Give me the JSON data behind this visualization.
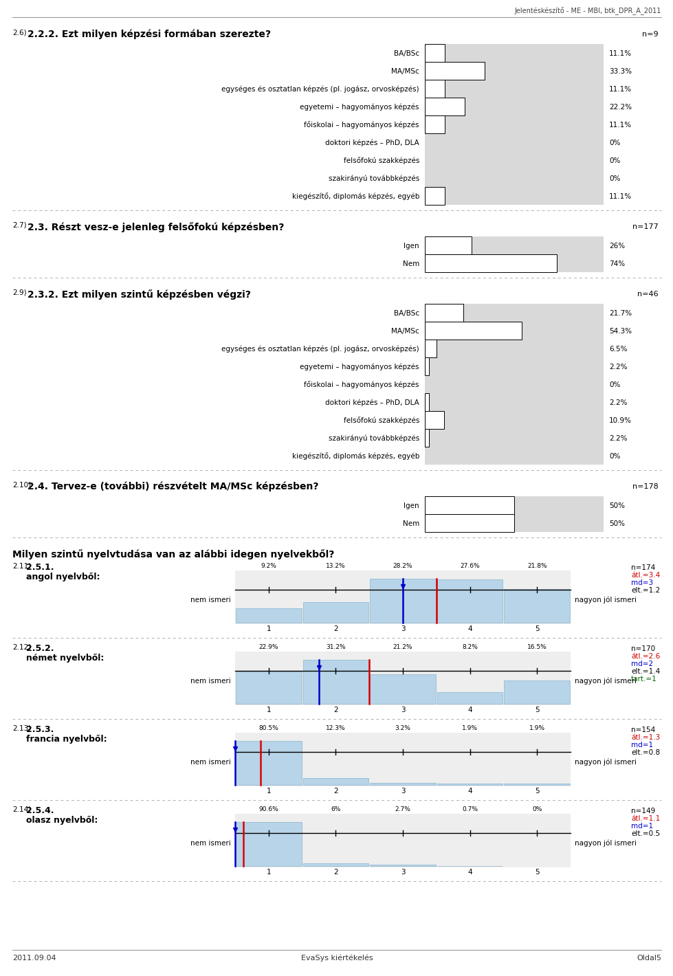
{
  "header_text": "Jelentéskészítő - ME - MBI, btk_DPR_A_2011",
  "footer_left": "2011.09.04",
  "footer_center": "EvaSys kiértékelés",
  "footer_right": "Oldal5",
  "sections": [
    {
      "q_num": "2.6)",
      "title": "2.2.2. Ezt milyen képzési formában szerezte?",
      "n_label": "n=9",
      "categories": [
        "BA/BSc",
        "MA/MSc",
        "egységes és osztatlan képzés (pl. jogász, orvosképzés)",
        "egyetemi – hagyományos képzés",
        "főiskolai – hagyományos képzés",
        "doktori képzés – PhD, DLA",
        "felsőfokú szakképzés",
        "szakirányú továbbképzés",
        "kiegészítő, diplomás képzés, egyéb"
      ],
      "values": [
        11.1,
        33.3,
        11.1,
        22.2,
        11.1,
        0,
        0,
        0,
        11.1
      ],
      "labels": [
        "11.1%",
        "33.3%",
        "11.1%",
        "22.2%",
        "11.1%",
        "0%",
        "0%",
        "0%",
        "11.1%"
      ]
    },
    {
      "q_num": "2.7)",
      "title": "2.3. Részt vesz-e jelenleg felsőfokú képzésben?",
      "n_label": "n=177",
      "categories": [
        "Igen",
        "Nem"
      ],
      "values": [
        26,
        74
      ],
      "labels": [
        "26%",
        "74%"
      ]
    },
    {
      "q_num": "2.9)",
      "title": "2.3.2. Ezt milyen szintű képzésben végzi?",
      "n_label": "n=46",
      "categories": [
        "BA/BSc",
        "MA/MSc",
        "egységes és osztatlan képzés (pl. jogász, orvosképzés)",
        "egyetemi – hagyományos képzés",
        "főiskolai – hagyományos képzés",
        "doktori képzés – PhD, DLA",
        "felsőfokú szakképzés",
        "szakirányú továbbképzés",
        "kiegészítő, diplomás képzés, egyéb"
      ],
      "values": [
        21.7,
        54.3,
        6.5,
        2.2,
        0,
        2.2,
        10.9,
        2.2,
        0
      ],
      "labels": [
        "21.7%",
        "54.3%",
        "6.5%",
        "2.2%",
        "0%",
        "2.2%",
        "10.9%",
        "2.2%",
        "0%"
      ]
    },
    {
      "q_num": "2.10)",
      "title": "2.4. Tervez-e (további) részvételt MA/MSc képzésben?",
      "n_label": "n=178",
      "categories": [
        "Igen",
        "Nem"
      ],
      "values": [
        50,
        50
      ],
      "labels": [
        "50%",
        "50%"
      ]
    }
  ],
  "lang_section_title": "Milyen szintű nyelvtudása van az alábbi idegen nyelvekből?",
  "lang_sections": [
    {
      "q_num": "2.11)",
      "title_line1": "2.5.1.",
      "title_line2": "angol nyelvből:",
      "left_label": "nem ismeri",
      "right_label": "nagyon jól ismeri",
      "values": [
        9.2,
        13.2,
        28.2,
        27.6,
        21.8
      ],
      "labels": [
        "9.2%",
        "13.2%",
        "28.2%",
        "27.6%",
        "21.8%"
      ],
      "mean": 3.4,
      "median": 3,
      "sd": 1.2,
      "stats_lines": [
        {
          "text": "n=174",
          "color": "#000000"
        },
        {
          "text": "átl.=3.4",
          "color": "#cc0000"
        },
        {
          "text": "md=3",
          "color": "#0000cc"
        },
        {
          "text": "elt.=1.2",
          "color": "#000000"
        }
      ]
    },
    {
      "q_num": "2.12)",
      "title_line1": "2.5.2.",
      "title_line2": "német nyelvből:",
      "left_label": "nem ismeri",
      "right_label": "nagyon jól ismeri",
      "values": [
        22.9,
        31.2,
        21.2,
        8.2,
        16.5
      ],
      "labels": [
        "22.9%",
        "31.2%",
        "21.2%",
        "8.2%",
        "16.5%"
      ],
      "mean": 2.6,
      "median": 2,
      "sd": 1.4,
      "stats_lines": [
        {
          "text": "n=170",
          "color": "#000000"
        },
        {
          "text": "átl.=2.6",
          "color": "#cc0000"
        },
        {
          "text": "md=2",
          "color": "#0000cc"
        },
        {
          "text": "elt.=1.4",
          "color": "#000000"
        },
        {
          "text": "tart.=1",
          "color": "#006600"
        }
      ]
    },
    {
      "q_num": "2.13)",
      "title_line1": "2.5.3.",
      "title_line2": "francia nyelvből:",
      "left_label": "nem ismeri",
      "right_label": "nagyon jól ismeri",
      "values": [
        80.5,
        12.3,
        3.2,
        1.9,
        1.9
      ],
      "labels": [
        "80.5%",
        "12.3%",
        "3.2%",
        "1.9%",
        "1.9%"
      ],
      "mean": 1.3,
      "median": 1,
      "sd": 0.8,
      "stats_lines": [
        {
          "text": "n=154",
          "color": "#000000"
        },
        {
          "text": "átl.=1.3",
          "color": "#cc0000"
        },
        {
          "text": "md=1",
          "color": "#0000cc"
        },
        {
          "text": "elt.=0.8",
          "color": "#000000"
        }
      ]
    },
    {
      "q_num": "2.14)",
      "title_line1": "2.5.4.",
      "title_line2": "olasz nyelvből:",
      "left_label": "nem ismeri",
      "right_label": "nagyon jól ismeri",
      "values": [
        90.6,
        6.0,
        2.7,
        0.7,
        0.0
      ],
      "labels": [
        "90.6%",
        "6%",
        "2.7%",
        "0.7%",
        "0%"
      ],
      "mean": 1.1,
      "median": 1,
      "sd": 0.5,
      "stats_lines": [
        {
          "text": "n=149",
          "color": "#000000"
        },
        {
          "text": "átl.=1.1",
          "color": "#cc0000"
        },
        {
          "text": "md=1",
          "color": "#0000cc"
        },
        {
          "text": "elt.=0.5",
          "color": "#000000"
        }
      ]
    }
  ],
  "bar_bg_color": "#d9d9d9",
  "bar_fill_color": "#ffffff",
  "bar_outline_color": "#000000",
  "text_color": "#000000",
  "dashed_line_color": "#b0b0b0",
  "lang_bar_color": "#b8d4e8",
  "mean_line_color": "#dd0000",
  "median_line_color": "#0000cc",
  "whisker_color": "#000000"
}
